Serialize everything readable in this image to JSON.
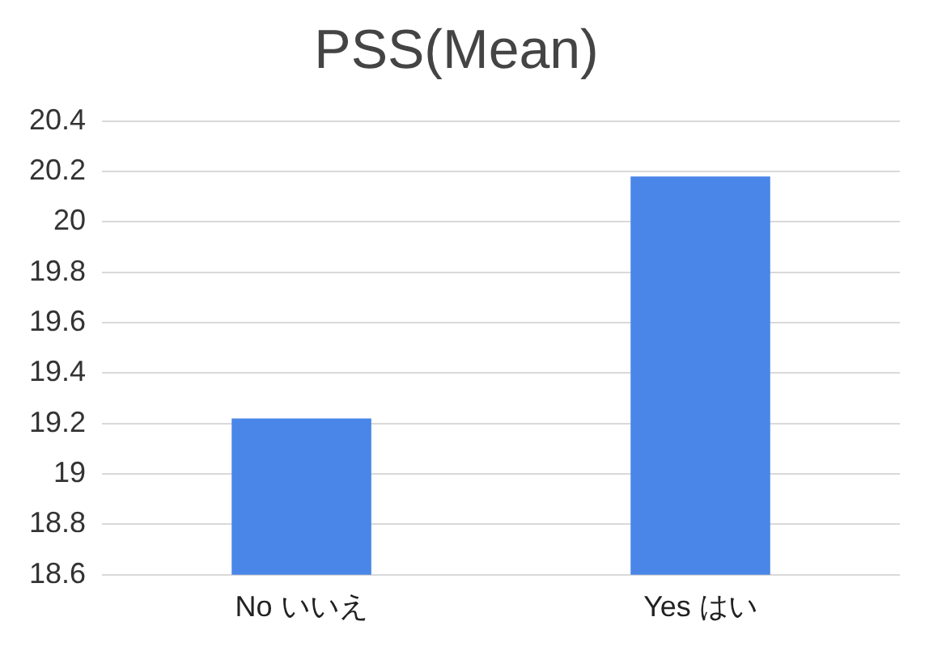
{
  "chart_data": {
    "type": "bar",
    "title": "PSS(Mean)",
    "categories": [
      "No いいえ",
      "Yes はい"
    ],
    "values": [
      19.22,
      20.18
    ],
    "color": "#4a86e8",
    "ylim": [
      18.6,
      20.4
    ],
    "yticks": [
      18.6,
      18.8,
      19,
      19.2,
      19.4,
      19.6,
      19.8,
      20,
      20.2,
      20.4
    ],
    "grid": "y"
  }
}
